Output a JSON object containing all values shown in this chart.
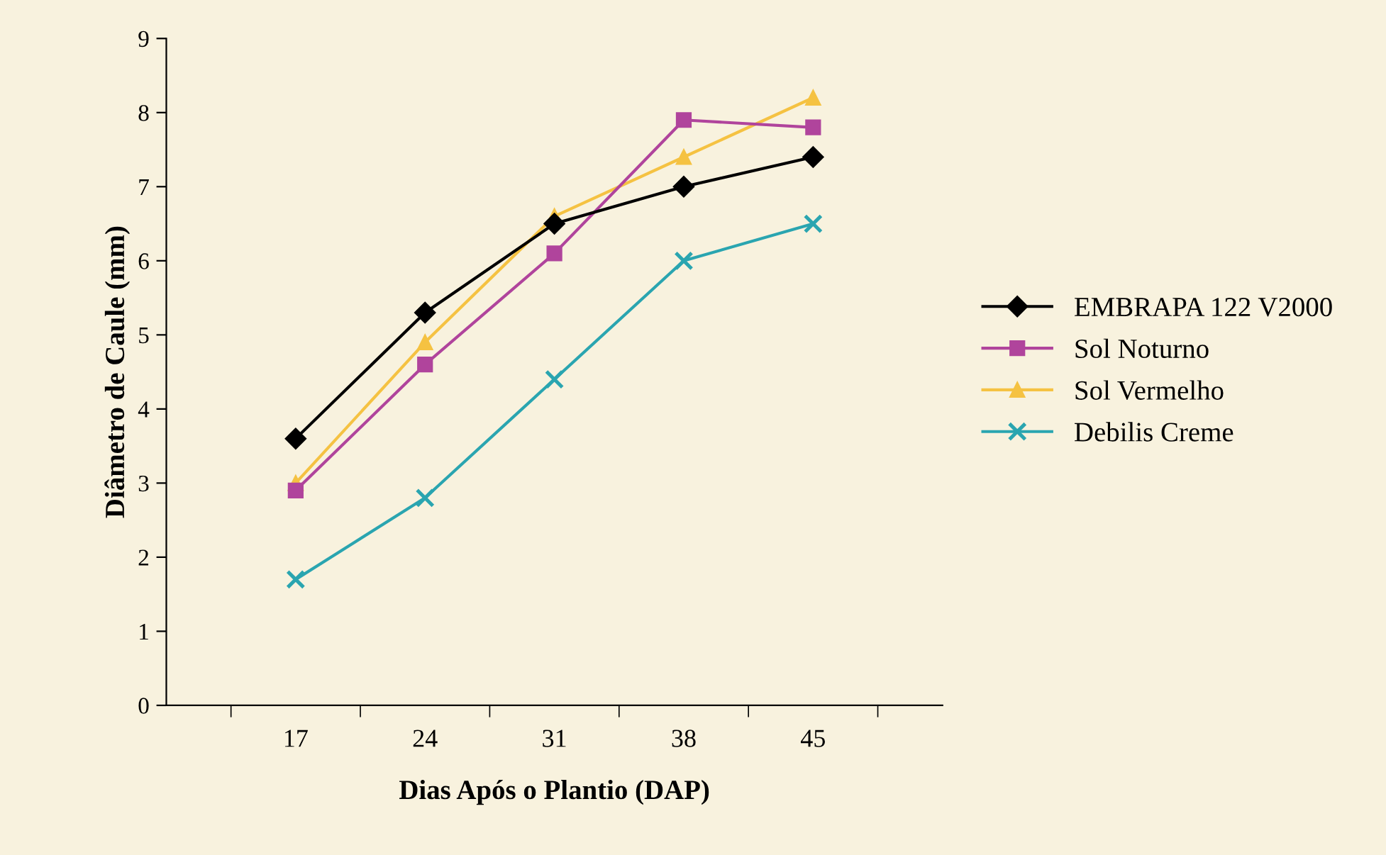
{
  "chart_data": {
    "type": "line",
    "xlabel": "Dias Após o Plantio (DAP)",
    "ylabel": "Diâmetro de Caule (mm)",
    "categories": [
      "17",
      "24",
      "31",
      "38",
      "45"
    ],
    "ylim": [
      0,
      9
    ],
    "yticks": [
      0,
      1,
      2,
      3,
      4,
      5,
      6,
      7,
      8,
      9
    ],
    "grid": false,
    "legend": "right",
    "series": [
      {
        "name": "EMBRAPA 122 V2000",
        "color": "#000000",
        "marker": "diamond",
        "values": [
          3.6,
          5.3,
          6.5,
          7.0,
          7.4
        ]
      },
      {
        "name": "Sol Noturno",
        "color": "#b0449c",
        "marker": "square",
        "values": [
          2.9,
          4.6,
          6.1,
          7.9,
          7.8
        ]
      },
      {
        "name": "Sol Vermelho",
        "color": "#f5c242",
        "marker": "triangle",
        "values": [
          3.0,
          4.9,
          6.6,
          7.4,
          8.2
        ]
      },
      {
        "name": "Debilis Creme",
        "color": "#2aa5b0",
        "marker": "cross",
        "values": [
          1.7,
          2.8,
          4.4,
          6.0,
          6.5
        ]
      }
    ]
  }
}
